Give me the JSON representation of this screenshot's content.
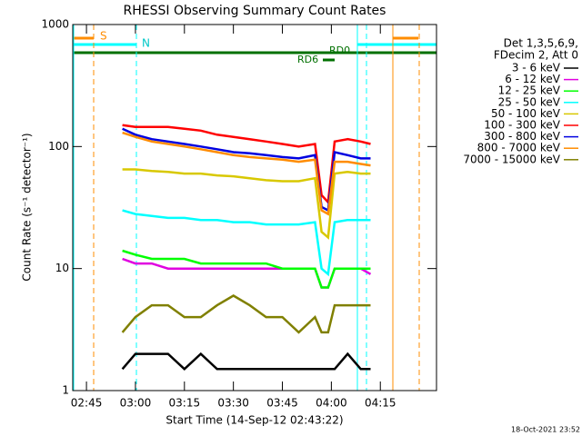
{
  "chart_data": {
    "type": "line",
    "title": "RHESSI Observing Summary Count Rates",
    "x_label": "Start Time (14-Sep-12 02:43:22)",
    "y_label": "Count Rate (s⁻¹ detector⁻¹)",
    "legend_header": [
      "Det 1,3,5,6,9,",
      "FDecim 2, Att 0"
    ],
    "footer": "18-Oct-2021 23:52",
    "annotations": [
      "S",
      "N",
      "RD0",
      "RD6"
    ],
    "log_y": true,
    "xlim": [
      160.8,
      272.2
    ],
    "ylim": [
      1,
      1000
    ],
    "xticks": [
      {
        "value": 165,
        "label": "02:45"
      },
      {
        "value": 180,
        "label": "03:00"
      },
      {
        "value": 195,
        "label": "03:15"
      },
      {
        "value": 210,
        "label": "03:30"
      },
      {
        "value": 225,
        "label": "03:45"
      },
      {
        "value": 240,
        "label": "04:00"
      },
      {
        "value": 255,
        "label": "04:15"
      }
    ],
    "yticks": [
      1,
      10,
      100,
      1000
    ],
    "x": [
      176,
      180,
      185,
      190,
      195,
      200,
      205,
      210,
      215,
      220,
      225,
      230,
      235,
      237,
      239,
      241,
      245,
      249,
      252
    ],
    "series": [
      {
        "name": "3 - 6 keV",
        "color": "#000000",
        "values": [
          1.5,
          2,
          2,
          2,
          1.5,
          2,
          1.5,
          1.5,
          1.5,
          1.5,
          1.5,
          1.5,
          1.5,
          1.5,
          1.5,
          1.5,
          2,
          1.5,
          1.5
        ]
      },
      {
        "name": "6 - 12 keV",
        "color": "#e000e0",
        "values": [
          12,
          11,
          11,
          10,
          10,
          10,
          10,
          10,
          10,
          10,
          10,
          10,
          10,
          7,
          7,
          10,
          10,
          10,
          9
        ]
      },
      {
        "name": "12 - 25 keV",
        "color": "#00ff00",
        "values": [
          14,
          13,
          12,
          12,
          12,
          11,
          11,
          11,
          11,
          11,
          10,
          10,
          10,
          7,
          7,
          10,
          10,
          10,
          10
        ]
      },
      {
        "name": "25 - 50 keV",
        "color": "#00ffff",
        "values": [
          30,
          28,
          27,
          26,
          26,
          25,
          25,
          24,
          24,
          23,
          23,
          23,
          24,
          10,
          9,
          24,
          25,
          25,
          25
        ]
      },
      {
        "name": "50 - 100 keV",
        "color": "#d8c800",
        "values": [
          65,
          65,
          63,
          62,
          60,
          60,
          58,
          57,
          55,
          53,
          52,
          52,
          55,
          20,
          18,
          60,
          62,
          60,
          60
        ]
      },
      {
        "name": "100 - 300 keV",
        "color": "#ff0000",
        "values": [
          150,
          145,
          145,
          145,
          140,
          135,
          125,
          120,
          115,
          110,
          105,
          100,
          105,
          40,
          35,
          110,
          115,
          110,
          105
        ]
      },
      {
        "name": "300 - 800 keV",
        "color": "#0000e0",
        "values": [
          140,
          125,
          115,
          110,
          105,
          100,
          95,
          90,
          88,
          85,
          82,
          80,
          85,
          32,
          30,
          90,
          85,
          80,
          80
        ]
      },
      {
        "name": "800 - 7000 keV",
        "color": "#ff8c00",
        "values": [
          130,
          120,
          110,
          105,
          100,
          95,
          90,
          85,
          82,
          80,
          78,
          75,
          78,
          30,
          28,
          75,
          75,
          72,
          70
        ]
      },
      {
        "name": "7000 - 15000 keV",
        "color": "#808000",
        "values": [
          3,
          4,
          5,
          5,
          4,
          4,
          5,
          6,
          5,
          4,
          4,
          3,
          4,
          3,
          3,
          5,
          5,
          5,
          5
        ]
      }
    ]
  }
}
